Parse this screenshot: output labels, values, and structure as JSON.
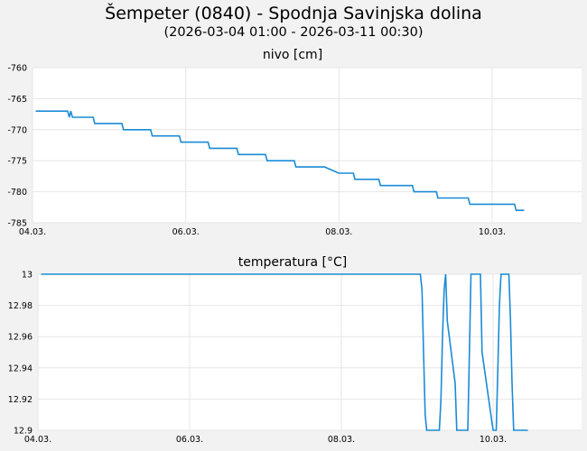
{
  "header": {
    "title": "Šempeter (0840) - Spodnja Savinjska dolina",
    "subtitle": "(2026-03-04 01:00 - 2026-03-11 00:30)"
  },
  "colors": {
    "background": "#f2f2f2",
    "plot_background": "#ffffff",
    "grid": "#e6e6e6",
    "line": "#1a8bd6"
  },
  "chart_data": [
    {
      "type": "line",
      "title": "nivo [cm]",
      "x_axis": {
        "min": "2026-03-04T00:00",
        "max": "2026-03-11T04:00",
        "tick_values": [
          "2026-03-04T00:00",
          "2026-03-06T00:00",
          "2026-03-08T00:00",
          "2026-03-10T00:00"
        ],
        "tick_labels": [
          "04.03.",
          "06.03.",
          "08.03.",
          "10.03."
        ]
      },
      "ylim": [
        -785,
        -760
      ],
      "y_ticks": [
        -760,
        -765,
        -770,
        -775,
        -780,
        -785
      ],
      "y_tick_labels": [
        "-760",
        "-765",
        "-770",
        "-775",
        "-780",
        "-785"
      ],
      "grid": true,
      "series": [
        {
          "x": [
            "2026-03-04T01:00",
            "2026-03-04T11:00",
            "2026-03-04T11:30",
            "2026-03-04T12:00",
            "2026-03-04T12:30",
            "2026-03-04T13:00",
            "2026-03-04T13:30",
            "2026-03-04T19:00",
            "2026-03-04T19:30",
            "2026-03-05T04:00",
            "2026-03-05T04:30",
            "2026-03-05T13:00",
            "2026-03-05T13:30",
            "2026-03-05T22:00",
            "2026-03-05T22:30",
            "2026-03-06T07:00",
            "2026-03-06T07:30",
            "2026-03-06T16:00",
            "2026-03-06T16:30",
            "2026-03-07T01:00",
            "2026-03-07T01:30",
            "2026-03-07T10:00",
            "2026-03-07T10:30",
            "2026-03-07T19:30",
            "2026-03-08T00:00",
            "2026-03-08T04:30",
            "2026-03-08T05:00",
            "2026-03-08T12:30",
            "2026-03-08T13:00",
            "2026-03-08T23:00",
            "2026-03-08T23:30",
            "2026-03-09T06:30",
            "2026-03-09T07:00",
            "2026-03-09T16:30",
            "2026-03-09T17:00",
            "2026-03-10T02:00",
            "2026-03-10T02:30",
            "2026-03-10T07:00",
            "2026-03-10T07:30",
            "2026-03-10T10:00"
          ],
          "y": [
            -767,
            -767,
            -768,
            -767,
            -768,
            -768,
            -768,
            -768,
            -769,
            -769,
            -770,
            -770,
            -771,
            -771,
            -772,
            -772,
            -773,
            -773,
            -774,
            -774,
            -775,
            -775,
            -776,
            -776,
            -777,
            -777,
            -778,
            -778,
            -779,
            -779,
            -780,
            -780,
            -781,
            -781,
            -782,
            -782,
            -782,
            -782,
            -783,
            -783
          ]
        }
      ]
    },
    {
      "type": "line",
      "title": "temperatura [°C]",
      "x_axis": {
        "min": "2026-03-04T00:00",
        "max": "2026-03-11T04:00",
        "tick_values": [
          "2026-03-04T00:00",
          "2026-03-06T00:00",
          "2026-03-08T00:00",
          "2026-03-10T00:00"
        ],
        "tick_labels": [
          "04.03.",
          "06.03.",
          "08.03.",
          "10.03."
        ]
      },
      "ylim": [
        12.9,
        13.0
      ],
      "y_ticks": [
        13,
        12.98,
        12.96,
        12.94,
        12.92,
        12.9
      ],
      "y_tick_labels": [
        "13",
        "12.98",
        "12.96",
        "12.94",
        "12.92",
        "12.9"
      ],
      "grid": true,
      "series": [
        {
          "x": [
            "2026-03-04T01:00",
            "2026-03-09T01:00",
            "2026-03-09T01:30",
            "2026-03-09T02:00",
            "2026-03-09T02:30",
            "2026-03-09T03:00",
            "2026-03-09T03:30",
            "2026-03-09T07:00",
            "2026-03-09T07:30",
            "2026-03-09T08:00",
            "2026-03-09T08:30",
            "2026-03-09T09:00",
            "2026-03-09T09:30",
            "2026-03-09T12:00",
            "2026-03-09T12:30",
            "2026-03-09T13:00",
            "2026-03-09T13:30",
            "2026-03-09T16:00",
            "2026-03-09T16:30",
            "2026-03-09T17:00",
            "2026-03-09T20:00",
            "2026-03-09T20:30",
            "2026-03-10T00:00",
            "2026-03-10T00:30",
            "2026-03-10T01:00",
            "2026-03-10T01:30",
            "2026-03-10T02:00",
            "2026-03-10T02:30",
            "2026-03-10T05:00",
            "2026-03-10T05:30",
            "2026-03-10T06:00",
            "2026-03-10T06:30",
            "2026-03-10T07:00",
            "2026-03-10T07:30",
            "2026-03-10T11:00"
          ],
          "y": [
            13,
            13,
            12.99,
            12.95,
            12.91,
            12.9,
            12.9,
            12.9,
            12.92,
            12.96,
            12.99,
            13,
            12.97,
            12.93,
            12.9,
            12.9,
            12.9,
            12.9,
            12.95,
            13,
            13,
            12.95,
            12.9,
            12.9,
            12.9,
            12.94,
            12.98,
            13,
            13,
            12.97,
            12.93,
            12.9,
            12.9,
            12.9,
            12.9
          ]
        }
      ]
    }
  ]
}
